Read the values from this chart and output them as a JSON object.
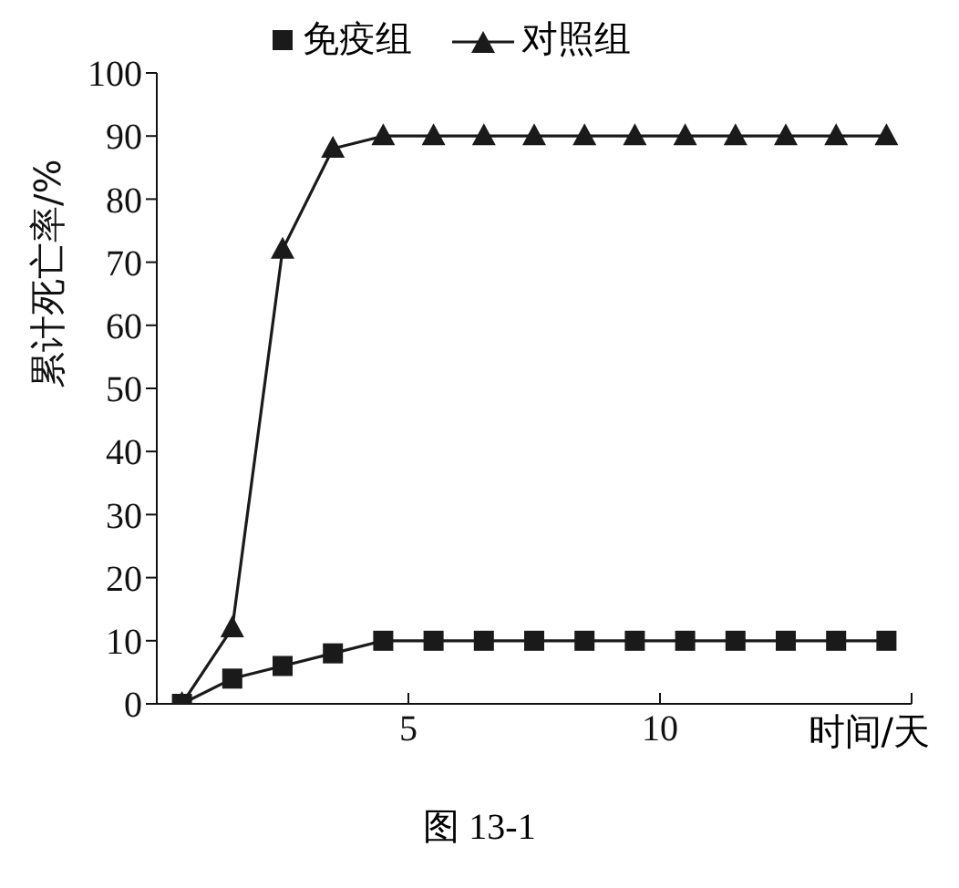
{
  "chart_data": {
    "type": "line",
    "xlabel": "时间/天",
    "ylabel": "累计死亡率/%",
    "annotations": [
      "图 13-1"
    ],
    "x": [
      0.5,
      1.5,
      2.5,
      3.5,
      4.5,
      5.5,
      6.5,
      7.5,
      8.5,
      9.5,
      10.5,
      11.5,
      12.5,
      13.5,
      14.5
    ],
    "series": [
      {
        "name": "免疫组",
        "color": "#1a1a1a",
        "marker": "square",
        "values": [
          0,
          4,
          6,
          8,
          10,
          10,
          10,
          10,
          10,
          10,
          10,
          10,
          10,
          10,
          10
        ]
      },
      {
        "name": "对照组",
        "color": "#1a1a1a",
        "marker": "triangle",
        "values": [
          0,
          12,
          72,
          88,
          90,
          90,
          90,
          90,
          90,
          90,
          90,
          90,
          90,
          90,
          90
        ]
      }
    ],
    "xlim": [
      0,
      15
    ],
    "xticks": [
      5,
      10,
      {
        "value": 15,
        "label": null
      }
    ],
    "ylim": [
      0,
      100
    ],
    "yticks": [
      0,
      10,
      20,
      30,
      40,
      50,
      60,
      70,
      80,
      90,
      100
    ],
    "grid": false,
    "legend": "top"
  }
}
